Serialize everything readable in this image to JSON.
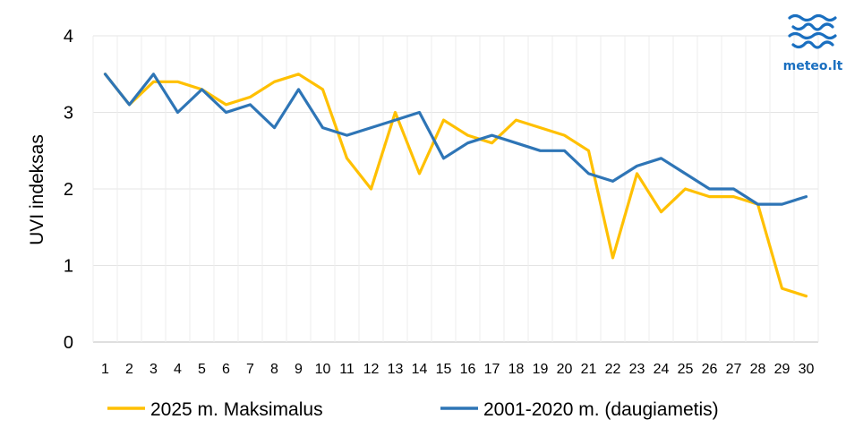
{
  "chart_data": {
    "type": "line",
    "x": [
      1,
      2,
      3,
      4,
      5,
      6,
      7,
      8,
      9,
      10,
      11,
      12,
      13,
      14,
      15,
      16,
      17,
      18,
      19,
      20,
      21,
      22,
      23,
      24,
      25,
      26,
      27,
      28,
      29,
      30
    ],
    "series": [
      {
        "name": "2025 m. Maksimalus",
        "color": "#ffc000",
        "values": [
          3.5,
          3.1,
          3.4,
          3.4,
          3.3,
          3.1,
          3.2,
          3.4,
          3.5,
          3.3,
          2.4,
          2.0,
          3.0,
          2.2,
          2.9,
          2.7,
          2.6,
          2.9,
          2.8,
          2.7,
          2.5,
          1.1,
          2.2,
          1.7,
          2.0,
          1.9,
          1.9,
          1.8,
          0.7,
          0.6
        ]
      },
      {
        "name": "2001-2020 m. (daugiametis)",
        "color": "#2e75b6",
        "values": [
          3.5,
          3.1,
          3.5,
          3.0,
          3.3,
          3.0,
          3.1,
          2.8,
          3.3,
          2.8,
          2.7,
          2.8,
          2.9,
          3.0,
          2.4,
          2.6,
          2.7,
          2.6,
          2.5,
          2.5,
          2.2,
          2.1,
          2.3,
          2.4,
          2.2,
          2.0,
          2.0,
          1.8,
          1.8,
          1.9
        ]
      }
    ],
    "ylabel": "UVI indeksas",
    "yticks": [
      "0",
      "1",
      "2",
      "3",
      "4"
    ],
    "ylim": [
      0,
      4
    ],
    "grid": true,
    "legend_position": "bottom"
  },
  "logo": {
    "text": "meteo.lt",
    "color": "#1a6fc0"
  }
}
